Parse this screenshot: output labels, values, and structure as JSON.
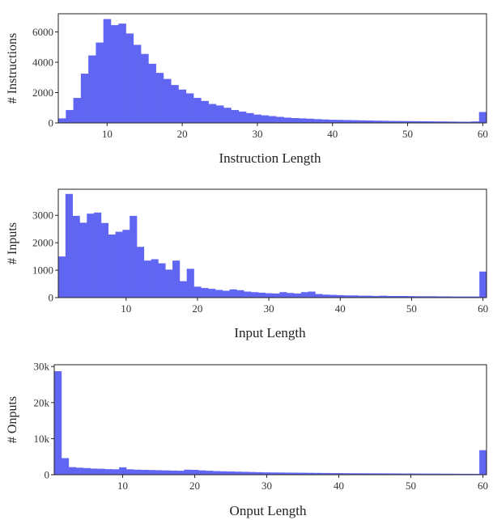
{
  "bar_color": "#6166f2",
  "axis_color": "#222222",
  "chart_data": [
    {
      "type": "bar",
      "xlabel": "Instruction Length",
      "ylabel": "# Instructions",
      "xlim": [
        3.5,
        60.5
      ],
      "ylim": [
        0,
        7200
      ],
      "xticks": [
        10,
        20,
        30,
        40,
        50,
        60
      ],
      "yticks": [
        0,
        2000,
        4000,
        6000
      ],
      "ytick_labels": [
        "0",
        "2000",
        "4000",
        "6000"
      ],
      "x": [
        4,
        5,
        6,
        7,
        8,
        9,
        10,
        11,
        12,
        13,
        14,
        15,
        16,
        17,
        18,
        19,
        20,
        21,
        22,
        23,
        24,
        25,
        26,
        27,
        28,
        29,
        30,
        31,
        32,
        33,
        34,
        35,
        36,
        37,
        38,
        39,
        40,
        41,
        42,
        43,
        44,
        45,
        46,
        47,
        48,
        49,
        50,
        51,
        52,
        53,
        54,
        55,
        56,
        57,
        58,
        59,
        60
      ],
      "values": [
        300,
        850,
        1650,
        3250,
        4450,
        5300,
        6850,
        6450,
        6550,
        5900,
        5150,
        4550,
        3900,
        3300,
        2900,
        2500,
        2200,
        1950,
        1650,
        1450,
        1250,
        1150,
        1000,
        850,
        750,
        650,
        550,
        500,
        450,
        400,
        350,
        320,
        300,
        280,
        250,
        230,
        210,
        200,
        190,
        180,
        170,
        160,
        150,
        140,
        130,
        125,
        120,
        115,
        110,
        105,
        100,
        95,
        90,
        85,
        80,
        100,
        720
      ]
    },
    {
      "type": "bar",
      "xlabel": "Input Length",
      "ylabel": "# Inputs",
      "xlim": [
        0.5,
        60.5
      ],
      "ylim": [
        0,
        3950
      ],
      "xticks": [
        10,
        20,
        30,
        40,
        50,
        60
      ],
      "yticks": [
        0,
        1000,
        2000,
        3000
      ],
      "ytick_labels": [
        "0",
        "1000",
        "2000",
        "3000"
      ],
      "x": [
        1,
        2,
        3,
        4,
        5,
        6,
        7,
        8,
        9,
        10,
        11,
        12,
        13,
        14,
        15,
        16,
        17,
        18,
        19,
        20,
        21,
        22,
        23,
        24,
        25,
        26,
        27,
        28,
        29,
        30,
        31,
        32,
        33,
        34,
        35,
        36,
        37,
        38,
        39,
        40,
        41,
        42,
        43,
        44,
        45,
        46,
        47,
        48,
        49,
        50,
        51,
        52,
        53,
        54,
        55,
        56,
        57,
        58,
        59,
        60
      ],
      "values": [
        1500,
        3780,
        2980,
        2730,
        3060,
        3100,
        2720,
        2300,
        2400,
        2470,
        2980,
        1850,
        1350,
        1400,
        1250,
        1020,
        1350,
        600,
        1050,
        400,
        350,
        320,
        280,
        250,
        300,
        270,
        220,
        200,
        180,
        160,
        150,
        200,
        170,
        150,
        200,
        220,
        130,
        110,
        100,
        90,
        80,
        80,
        70,
        70,
        60,
        70,
        60,
        60,
        60,
        55,
        50,
        50,
        50,
        45,
        45,
        40,
        40,
        40,
        40,
        950
      ]
    },
    {
      "type": "bar",
      "xlabel": "Onput Length",
      "ylabel": "# Onputs",
      "xlim": [
        0.5,
        60.5
      ],
      "ylim": [
        0,
        30500
      ],
      "xticks": [
        10,
        20,
        30,
        40,
        50,
        60
      ],
      "yticks": [
        0,
        10000,
        20000,
        30000
      ],
      "ytick_labels": [
        "0",
        "10k",
        "20k",
        "30k"
      ],
      "x": [
        1,
        2,
        3,
        4,
        5,
        6,
        7,
        8,
        9,
        10,
        11,
        12,
        13,
        14,
        15,
        16,
        17,
        18,
        19,
        20,
        21,
        22,
        23,
        24,
        25,
        26,
        27,
        28,
        29,
        30,
        31,
        32,
        33,
        34,
        35,
        36,
        37,
        38,
        39,
        40,
        41,
        42,
        43,
        44,
        45,
        46,
        47,
        48,
        49,
        50,
        51,
        52,
        53,
        54,
        55,
        56,
        57,
        58,
        59,
        60
      ],
      "values": [
        28700,
        4600,
        2100,
        1950,
        1850,
        1700,
        1650,
        1550,
        1500,
        2050,
        1500,
        1400,
        1350,
        1300,
        1250,
        1200,
        1150,
        1100,
        1400,
        1350,
        1200,
        1100,
        1000,
        950,
        900,
        850,
        800,
        750,
        700,
        650,
        620,
        600,
        580,
        560,
        540,
        520,
        500,
        480,
        460,
        440,
        420,
        410,
        400,
        390,
        380,
        370,
        360,
        350,
        340,
        330,
        320,
        310,
        300,
        290,
        280,
        270,
        260,
        250,
        240,
        6800
      ]
    }
  ]
}
